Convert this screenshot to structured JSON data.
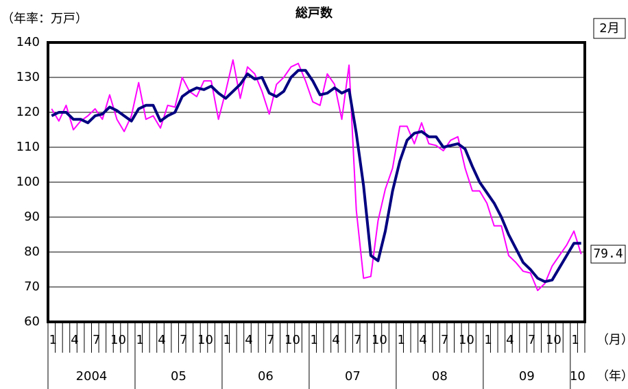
{
  "chart_data": {
    "type": "line",
    "title": "総戸数",
    "y_label": "（年率：万戸）",
    "annotation": "2月",
    "month_unit": "（月）",
    "year_unit": "（年）",
    "categories": [
      "1",
      null,
      null,
      "4",
      null,
      null,
      "7",
      null,
      null,
      "10",
      null,
      null,
      "1",
      null,
      null,
      "4",
      null,
      null,
      "7",
      null,
      null,
      "10",
      null,
      null,
      "1",
      null,
      null,
      "4",
      null,
      null,
      "7",
      null,
      null,
      "10",
      null,
      null,
      "1",
      null,
      null,
      "4",
      null,
      null,
      "7",
      null,
      null,
      "10",
      null,
      null,
      "1",
      null,
      null,
      "4",
      null,
      null,
      "7",
      null,
      null,
      "10",
      null,
      null,
      "1",
      null,
      null,
      "4",
      null,
      null,
      "7",
      null,
      null,
      "10",
      null,
      null,
      "1",
      null
    ],
    "years": [
      "2004",
      "05",
      "06",
      "07",
      "08",
      "09",
      "10"
    ],
    "series": [
      {
        "color": "#ff00ff",
        "width": 2,
        "values": [
          121,
          117.5,
          122,
          115,
          117.5,
          119,
          121,
          118,
          125,
          118,
          114.5,
          119,
          128.5,
          118,
          119,
          115.5,
          122,
          121.5,
          130,
          126,
          124.5,
          129,
          129,
          118,
          126,
          135,
          124,
          133,
          131,
          126,
          119.5,
          128,
          130,
          133,
          134,
          129,
          123,
          122,
          131,
          128,
          118,
          133.5,
          92,
          72.5,
          73,
          89,
          98,
          104,
          116,
          116,
          111,
          117,
          111,
          110.5,
          109,
          112,
          113,
          104,
          97.5,
          97.5,
          94,
          87.5,
          87.5,
          79,
          77,
          74.5,
          74,
          69,
          71,
          76,
          79,
          82,
          86,
          79.4
        ]
      },
      {
        "color": "#000080",
        "width": 4,
        "values": [
          119,
          120,
          120,
          118,
          118,
          117,
          119,
          119.5,
          121.5,
          120.5,
          119,
          117.5,
          121,
          122,
          122,
          117.5,
          119,
          120,
          124.5,
          126,
          127,
          126.5,
          127.5,
          125.5,
          124,
          126,
          128,
          131,
          129.5,
          130,
          125.5,
          124.5,
          126,
          130,
          132,
          132,
          129,
          125,
          125.5,
          127,
          125.5,
          126.5,
          114,
          99,
          79,
          77.5,
          86,
          97.5,
          106,
          112,
          114,
          114.5,
          113,
          113,
          110,
          110.5,
          111,
          109.5,
          104.5,
          100,
          97,
          94,
          90,
          85,
          81,
          77,
          75,
          72.5,
          71.5,
          72,
          75.5,
          79,
          82.5,
          82.5
        ]
      }
    ],
    "ylim": [
      60,
      140
    ],
    "yticks": [
      60,
      70,
      80,
      90,
      100,
      110,
      120,
      130,
      140
    ],
    "grid": true
  }
}
